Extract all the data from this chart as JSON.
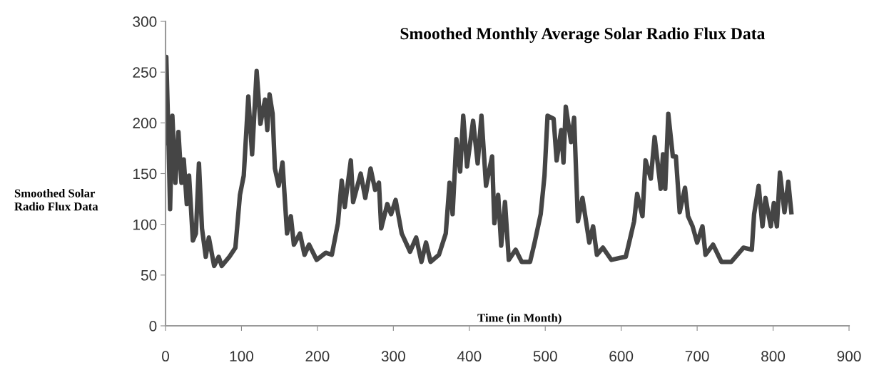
{
  "chart_data": {
    "type": "line",
    "title": "Smoothed Monthly Average Solar Radio Flux Data",
    "xlabel": "Time (in Month)",
    "ylabel": "Smoothed Solar\nRadio Flux Data",
    "xlim": [
      0,
      900
    ],
    "xticks": [
      0,
      100,
      200,
      300,
      400,
      500,
      600,
      700,
      800,
      900
    ],
    "ylim": [
      0,
      300
    ],
    "yticks": [
      0,
      50,
      100,
      150,
      200,
      250,
      300
    ],
    "grid": false,
    "marker": "none",
    "line_style": "solid",
    "series": [
      {
        "color": "#454545",
        "x": [
          0,
          1,
          4,
          6,
          9,
          13,
          17,
          21,
          24,
          28,
          31,
          36,
          40,
          44,
          48,
          53,
          57,
          64,
          70,
          74,
          84,
          92,
          98,
          103,
          109,
          114,
          120,
          125,
          131,
          134,
          137,
          141,
          144,
          149,
          154,
          160,
          165,
          169,
          177,
          183,
          189,
          199,
          211,
          219,
          227,
          232,
          236,
          244,
          247,
          257,
          263,
          270,
          276,
          281,
          284,
          292,
          297,
          303,
          311,
          322,
          330,
          337,
          343,
          349,
          360,
          369,
          374,
          378,
          383,
          388,
          392,
          397,
          405,
          411,
          416,
          422,
          430,
          433,
          438,
          442,
          447,
          452,
          461,
          469,
          480,
          486,
          494,
          499,
          503,
          511,
          515,
          521,
          524,
          527,
          534,
          538,
          543,
          549,
          558,
          563,
          568,
          576,
          587,
          599,
          606,
          612,
          617,
          621,
          628,
          632,
          639,
          644,
          652,
          655,
          658,
          662,
          668,
          672,
          677,
          684,
          688,
          694,
          700,
          707,
          711,
          721,
          732,
          745,
          761,
          772,
          775,
          781,
          786,
          790,
          797,
          801,
          805,
          809,
          815,
          820,
          824
        ],
        "values": [
          180,
          265,
          181,
          115,
          207,
          141,
          191,
          141,
          164,
          120,
          148,
          84,
          91,
          160,
          96,
          68,
          87,
          59,
          68,
          59,
          68,
          77,
          129,
          148,
          226,
          169,
          251,
          199,
          223,
          193,
          228,
          209,
          155,
          138,
          161,
          91,
          108,
          80,
          91,
          70,
          80,
          65,
          72,
          70,
          101,
          143,
          117,
          163,
          122,
          150,
          126,
          155,
          134,
          141,
          96,
          120,
          110,
          124,
          91,
          73,
          87,
          63,
          82,
          63,
          70,
          91,
          141,
          110,
          184,
          152,
          207,
          157,
          202,
          160,
          207,
          138,
          167,
          101,
          129,
          79,
          122,
          65,
          75,
          63,
          63,
          82,
          110,
          148,
          207,
          204,
          163,
          193,
          161,
          216,
          181,
          205,
          103,
          126,
          82,
          98,
          70,
          77,
          65,
          67,
          68,
          87,
          103,
          130,
          108,
          163,
          145,
          186,
          135,
          169,
          135,
          209,
          167,
          167,
          112,
          136,
          108,
          98,
          82,
          98,
          70,
          80,
          63,
          63,
          77,
          75,
          110,
          138,
          98,
          126,
          98,
          121,
          98,
          151,
          112,
          142,
          112
        ]
      }
    ]
  }
}
